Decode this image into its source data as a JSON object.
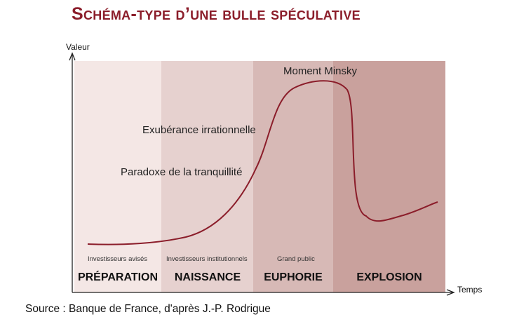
{
  "title": "Schéma-type d’une bulle spéculative",
  "axes": {
    "y_label": "Valeur",
    "x_label": "Temps"
  },
  "phases": [
    {
      "name": "PRÉPARATION",
      "actors": "Investisseurs avisés",
      "color": "#f4e7e5"
    },
    {
      "name": "NAISSANCE",
      "actors": "Investisseurs institutionnels",
      "color": "#e6d1cf"
    },
    {
      "name": "EUPHORIE",
      "actors": "Grand public",
      "color": "#d7b9b6"
    },
    {
      "name": "EXPLOSION",
      "actors": "",
      "color": "#c9a19d"
    }
  ],
  "annotations": {
    "minsky": "Moment Minsky",
    "exuberance": "Exubérance irrationnelle",
    "paradoxe": "Paradoxe de la tranquillité"
  },
  "colors": {
    "curve": "#8b1d2a",
    "title": "#8b1d2a",
    "axis": "#222222"
  },
  "source": "Source : Banque de France, d'après J.-P. Rodrigue"
}
